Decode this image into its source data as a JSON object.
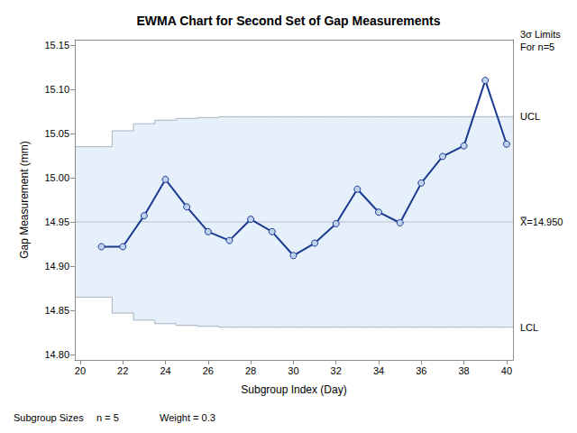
{
  "chart_data": {
    "type": "line",
    "title": "EWMA Chart for Second Set of Gap Measurements",
    "x_label": "Subgroup Index (Day)",
    "y_label": "Gap Measurement (mm)",
    "x": [
      21,
      22,
      23,
      24,
      25,
      26,
      27,
      28,
      29,
      30,
      31,
      32,
      33,
      34,
      35,
      36,
      37,
      38,
      39,
      40
    ],
    "values": [
      14.922,
      14.922,
      14.957,
      14.998,
      14.967,
      14.939,
      14.929,
      14.953,
      14.939,
      14.912,
      14.926,
      14.948,
      14.987,
      14.961,
      14.949,
      14.994,
      15.024,
      15.036,
      15.11,
      15.038
    ],
    "color": "#1A3A8F",
    "marker": "circle",
    "ucl": [
      15.035,
      15.053,
      15.061,
      15.065,
      15.067,
      15.068,
      15.069,
      15.069,
      15.069,
      15.069,
      15.069,
      15.069,
      15.069,
      15.069,
      15.069,
      15.069,
      15.069,
      15.069,
      15.069,
      15.069
    ],
    "lcl": [
      14.865,
      14.847,
      14.839,
      14.835,
      14.833,
      14.832,
      14.831,
      14.831,
      14.831,
      14.831,
      14.831,
      14.831,
      14.831,
      14.831,
      14.831,
      14.831,
      14.831,
      14.831,
      14.831,
      14.831
    ],
    "center": 14.95,
    "limit_labels": {
      "ucl": "UCL",
      "center": "X̿=14.950",
      "lcl": "LCL"
    },
    "annotations": {
      "limits": [
        "3σ Limits",
        "For n=5"
      ],
      "footer": [
        "Subgroup Sizes",
        "n = 5",
        "Weight = 0.3"
      ]
    },
    "xlim": [
      19.75,
      40.3
    ],
    "xticks": [
      20,
      22,
      24,
      26,
      28,
      30,
      32,
      34,
      36,
      38,
      40
    ],
    "ylim": [
      14.794,
      15.156
    ],
    "yticks": [
      {
        "value": 14.8,
        "label": "14.80"
      },
      {
        "value": 14.85,
        "label": "14.85"
      },
      {
        "value": 14.9,
        "label": "14.90"
      },
      {
        "value": 14.95,
        "label": "14.95"
      },
      {
        "value": 15.0,
        "label": "15.00"
      },
      {
        "value": 15.05,
        "label": "15.05"
      },
      {
        "value": 15.1,
        "label": "15.10"
      },
      {
        "value": 15.15,
        "label": "15.15"
      }
    ],
    "grid": false
  }
}
